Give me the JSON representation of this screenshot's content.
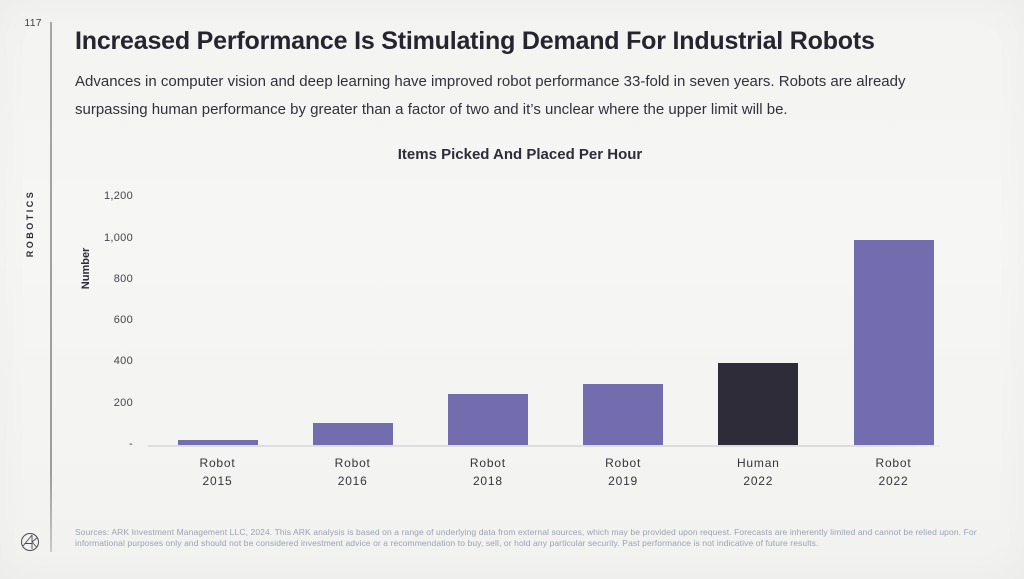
{
  "meta": {
    "page_number": "117"
  },
  "sidebar": {
    "section_label": "ROBOTICS",
    "logo": "ark-invest-circle-monogram"
  },
  "header": {
    "title": "Increased Performance Is Stimulating Demand For Industrial Robots",
    "subtitle": "Advances in computer vision and deep learning have improved robot performance 33-fold in seven years. Robots are already surpassing human performance by greater than a factor of two and it’s unclear where the upper limit will be."
  },
  "chart_data": {
    "type": "bar",
    "title": "Items Picked And Placed Per Hour",
    "ylabel": "Number",
    "xlabel": "",
    "categories": [
      {
        "label": "Robot",
        "year": "2015"
      },
      {
        "label": "Robot",
        "year": "2016"
      },
      {
        "label": "Robot",
        "year": "2018"
      },
      {
        "label": "Robot",
        "year": "2019"
      },
      {
        "label": "Human",
        "year": "2022"
      },
      {
        "label": "Robot",
        "year": "2022"
      }
    ],
    "values": [
      30,
      110,
      250,
      300,
      400,
      1000
    ],
    "ylim": [
      0,
      1200
    ],
    "ytick_step": 200,
    "ytick_labels": [
      "-",
      "200",
      "400",
      "600",
      "800",
      "1,000",
      "1,200"
    ],
    "grid": false,
    "legend": "none",
    "bar_color_default": "#736DB0",
    "bar_color_highlight": "#2E2C38",
    "highlight_index": 4
  },
  "footer": {
    "disclaimer": "Sources: ARK Investment Management LLC, 2024. This ARK analysis is based on a range of underlying data from external sources, which may be provided upon request. Forecasts are inherently limited and cannot be relied upon. For informational purposes only and should not be considered investment advice or a recommendation to buy, sell, or hold any particular security. Past performance is not indicative of future results."
  }
}
